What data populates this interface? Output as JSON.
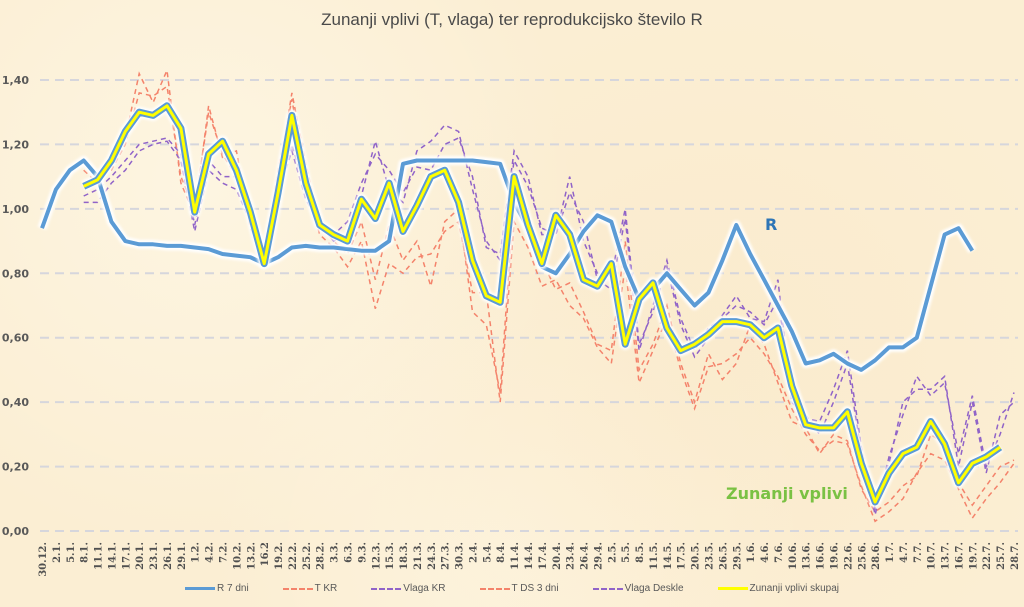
{
  "chart_data": {
    "type": "line",
    "title": "Zunanji vplivi (T, vlaga) ter reprodukcijsko število R",
    "xlabel": "",
    "ylabel": "",
    "ylim": [
      0,
      1.4
    ],
    "yticks": [
      "0,00",
      "0,20",
      "0,40",
      "0,60",
      "0,80",
      "1,00",
      "1,20",
      "1,40"
    ],
    "grid": true,
    "legend_position": "bottom",
    "categories": [
      "30.12.",
      "2.1.",
      "5.1.",
      "8.1.",
      "11.1.",
      "14.1.",
      "17.1.",
      "20.1.",
      "23.1.",
      "26.1.",
      "29.1.",
      "1.2.",
      "4.2.",
      "7.2.",
      "10.2.",
      "13.2.",
      "16.2",
      "19.2.",
      "22.2.",
      "25.2.",
      "28.2.",
      "3.3.",
      "6.3.",
      "9.3.",
      "12.3.",
      "15.3.",
      "18.3.",
      "21.3.",
      "24.3.",
      "27.3.",
      "30.3.",
      "2.4.",
      "5.4.",
      "8.4.",
      "11.4.",
      "14.4.",
      "17.4.",
      "20.4.",
      "23.4.",
      "26.4.",
      "29.4.",
      "2.5.",
      "5.5.",
      "8.5.",
      "11.5.",
      "14.5.",
      "17.5.",
      "20.5.",
      "23.5.",
      "26.5.",
      "29.5.",
      "1.6.",
      "4.6.",
      "7.6.",
      "10.6.",
      "13.6.",
      "16.6.",
      "19.6.",
      "22.6.",
      "25.6.",
      "28.6.",
      "1.7.",
      "4.7.",
      "7.7.",
      "10.7.",
      "13.7.",
      "16.7.",
      "19.7.",
      "22.7.",
      "25.7.",
      "28.7."
    ],
    "series": [
      {
        "name": "R 7 dni",
        "color": "#5b9bd5",
        "style": "solid",
        "values": [
          0.94,
          1.06,
          1.12,
          1.15,
          1.1,
          0.96,
          0.9,
          0.89,
          0.89,
          0.885,
          0.885,
          0.88,
          0.875,
          0.86,
          0.855,
          0.85,
          0.83,
          0.85,
          0.88,
          0.885,
          0.88,
          0.88,
          0.875,
          0.87,
          0.87,
          0.9,
          1.14,
          1.15,
          1.15,
          1.15,
          1.15,
          1.15,
          1.145,
          1.14,
          1.02,
          0.94,
          0.82,
          0.8,
          0.86,
          0.93,
          0.98,
          0.96,
          0.82,
          0.72,
          0.75,
          0.8,
          0.75,
          0.7,
          0.74,
          0.84,
          0.95,
          0.86,
          0.78,
          0.7,
          0.62,
          0.52,
          0.53,
          0.55,
          0.52,
          0.5,
          0.53,
          0.57,
          0.57,
          0.6,
          0.76,
          0.92,
          0.94,
          0.87,
          null,
          null,
          null
        ]
      },
      {
        "name": "T KR",
        "color": "#f4836b",
        "style": "dashed",
        "values": [
          null,
          null,
          null,
          1.15,
          1.1,
          1.12,
          1.2,
          1.36,
          1.35,
          1.38,
          1.1,
          1.0,
          1.3,
          1.17,
          1.1,
          0.96,
          0.88,
          1.1,
          1.36,
          1.14,
          0.95,
          0.9,
          0.86,
          0.96,
          0.78,
          0.95,
          0.84,
          0.9,
          0.76,
          0.96,
          1.0,
          0.68,
          0.64,
          0.43,
          1.04,
          0.92,
          0.84,
          0.75,
          0.77,
          0.68,
          0.58,
          0.56,
          0.9,
          0.5,
          0.58,
          0.7,
          0.52,
          0.4,
          0.55,
          0.47,
          0.52,
          0.64,
          0.58,
          0.46,
          0.34,
          0.32,
          0.24,
          0.3,
          0.28,
          0.13,
          0.06,
          0.09,
          0.14,
          0.17,
          0.3,
          0.27,
          0.15,
          0.08,
          0.14,
          0.2,
          0.22
        ]
      },
      {
        "name": "Vlaga KR",
        "color": "#9063c8",
        "style": "dashed",
        "values": [
          null,
          null,
          null,
          1.04,
          1.06,
          1.1,
          1.15,
          1.2,
          1.21,
          1.22,
          1.17,
          0.95,
          1.15,
          1.1,
          1.1,
          0.97,
          0.82,
          1.05,
          1.2,
          1.05,
          0.94,
          0.92,
          0.96,
          1.08,
          1.17,
          1.12,
          1.05,
          1.13,
          1.12,
          1.2,
          1.22,
          1.1,
          0.88,
          0.86,
          1.18,
          1.1,
          0.92,
          0.92,
          1.05,
          0.96,
          0.78,
          0.75,
          0.97,
          0.56,
          0.7,
          0.84,
          0.66,
          0.56,
          0.63,
          0.66,
          0.7,
          0.68,
          0.64,
          0.72,
          0.44,
          0.36,
          0.3,
          0.4,
          0.52,
          0.24,
          0.07,
          0.21,
          0.4,
          0.44,
          0.44,
          0.48,
          0.2,
          0.4,
          0.18,
          0.36,
          0.4
        ]
      },
      {
        "name": "T DS 3 dni",
        "color": "#f4836b",
        "style": "dashed",
        "values": [
          null,
          null,
          null,
          1.12,
          1.08,
          1.14,
          1.22,
          1.42,
          1.33,
          1.43,
          1.08,
          0.98,
          1.32,
          1.16,
          1.18,
          0.94,
          0.85,
          1.12,
          1.34,
          1.08,
          0.92,
          0.88,
          0.82,
          0.9,
          0.69,
          0.83,
          0.8,
          0.85,
          0.86,
          0.93,
          0.96,
          0.74,
          0.74,
          0.4,
          0.96,
          0.88,
          0.76,
          0.78,
          0.7,
          0.66,
          0.57,
          0.52,
          0.82,
          0.46,
          0.56,
          0.66,
          0.5,
          0.38,
          0.51,
          0.52,
          0.55,
          0.6,
          0.55,
          0.48,
          0.38,
          0.3,
          0.25,
          0.28,
          0.27,
          0.14,
          0.03,
          0.06,
          0.1,
          0.18,
          0.24,
          0.22,
          0.13,
          0.04,
          0.1,
          0.15,
          0.21
        ]
      },
      {
        "name": "Vlaga Deskle",
        "color": "#9063c8",
        "style": "dashed",
        "values": [
          null,
          null,
          null,
          1.02,
          1.02,
          1.08,
          1.12,
          1.18,
          1.2,
          1.21,
          1.15,
          0.93,
          1.12,
          1.08,
          1.06,
          0.96,
          0.82,
          1.05,
          1.18,
          1.03,
          0.95,
          0.9,
          0.92,
          1.04,
          1.21,
          1.06,
          1.02,
          1.18,
          1.21,
          1.26,
          1.24,
          1.06,
          0.9,
          0.84,
          1.15,
          1.07,
          0.94,
          0.92,
          1.1,
          0.9,
          0.8,
          0.79,
          1.0,
          0.58,
          0.68,
          0.82,
          0.64,
          0.54,
          0.6,
          0.67,
          0.73,
          0.66,
          0.65,
          0.78,
          0.4,
          0.35,
          0.34,
          0.44,
          0.56,
          0.26,
          0.05,
          0.23,
          0.36,
          0.48,
          0.42,
          0.46,
          0.24,
          0.42,
          0.2,
          0.3,
          0.43
        ]
      },
      {
        "name": "Zunanji vplivi skupaj",
        "color": "#ffff00",
        "style": "solid",
        "values": [
          null,
          null,
          null,
          1.07,
          1.09,
          1.15,
          1.24,
          1.3,
          1.29,
          1.32,
          1.25,
          0.99,
          1.17,
          1.21,
          1.12,
          0.99,
          0.83,
          1.05,
          1.29,
          1.08,
          0.95,
          0.92,
          0.9,
          1.03,
          0.97,
          1.08,
          0.93,
          1.01,
          1.1,
          1.12,
          1.02,
          0.84,
          0.73,
          0.71,
          1.1,
          0.95,
          0.83,
          0.98,
          0.92,
          0.78,
          0.76,
          0.83,
          0.58,
          0.72,
          0.77,
          0.63,
          0.56,
          0.58,
          0.61,
          0.65,
          0.65,
          0.64,
          0.6,
          0.63,
          0.45,
          0.33,
          0.32,
          0.32,
          0.37,
          0.21,
          0.09,
          0.18,
          0.24,
          0.26,
          0.34,
          0.27,
          0.15,
          0.21,
          0.23,
          0.26,
          null
        ]
      }
    ],
    "annotations": [
      {
        "text": "R",
        "color": "#2e75b6",
        "near_series": "R 7 dni"
      },
      {
        "text": "Zunanji vplivi",
        "color": "#7ac143",
        "near_series": "Zunanji vplivi skupaj"
      }
    ]
  }
}
